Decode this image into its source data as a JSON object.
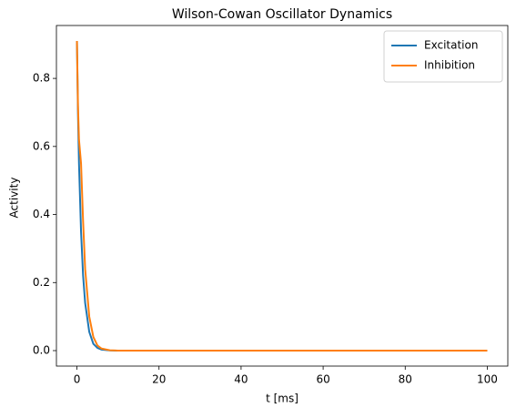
{
  "chart_data": {
    "type": "line",
    "title": "Wilson-Cowan Oscillator Dynamics",
    "x_label": "t [ms]",
    "y_label": "Activity",
    "x": [
      0,
      0.25,
      0.5,
      1,
      1.5,
      2,
      3,
      4,
      5,
      6,
      8,
      10,
      20,
      40,
      60,
      80,
      100
    ],
    "series": [
      {
        "name": "Excitation",
        "color": "#1f77b4",
        "values": [
          0.91,
          0.7,
          0.55,
          0.35,
          0.22,
          0.14,
          0.055,
          0.02,
          0.008,
          0.003,
          0.0005,
          0,
          0,
          0,
          0,
          0,
          0
        ]
      },
      {
        "name": "Inhibition",
        "color": "#ff7f0e",
        "values": [
          0.91,
          0.72,
          0.62,
          0.55,
          0.38,
          0.24,
          0.1,
          0.04,
          0.015,
          0.006,
          0.001,
          0,
          0,
          0,
          0,
          0,
          0
        ]
      }
    ],
    "xlim": [
      -5,
      105
    ],
    "ylim": [
      -0.0455,
      0.9555
    ],
    "xticks": [
      0,
      20,
      40,
      60,
      80,
      100
    ],
    "yticks": [
      {
        "value": 0,
        "label": "0.0"
      },
      0.2,
      0.4,
      0.6,
      0.8
    ],
    "legend": "upper right",
    "grid": false
  }
}
